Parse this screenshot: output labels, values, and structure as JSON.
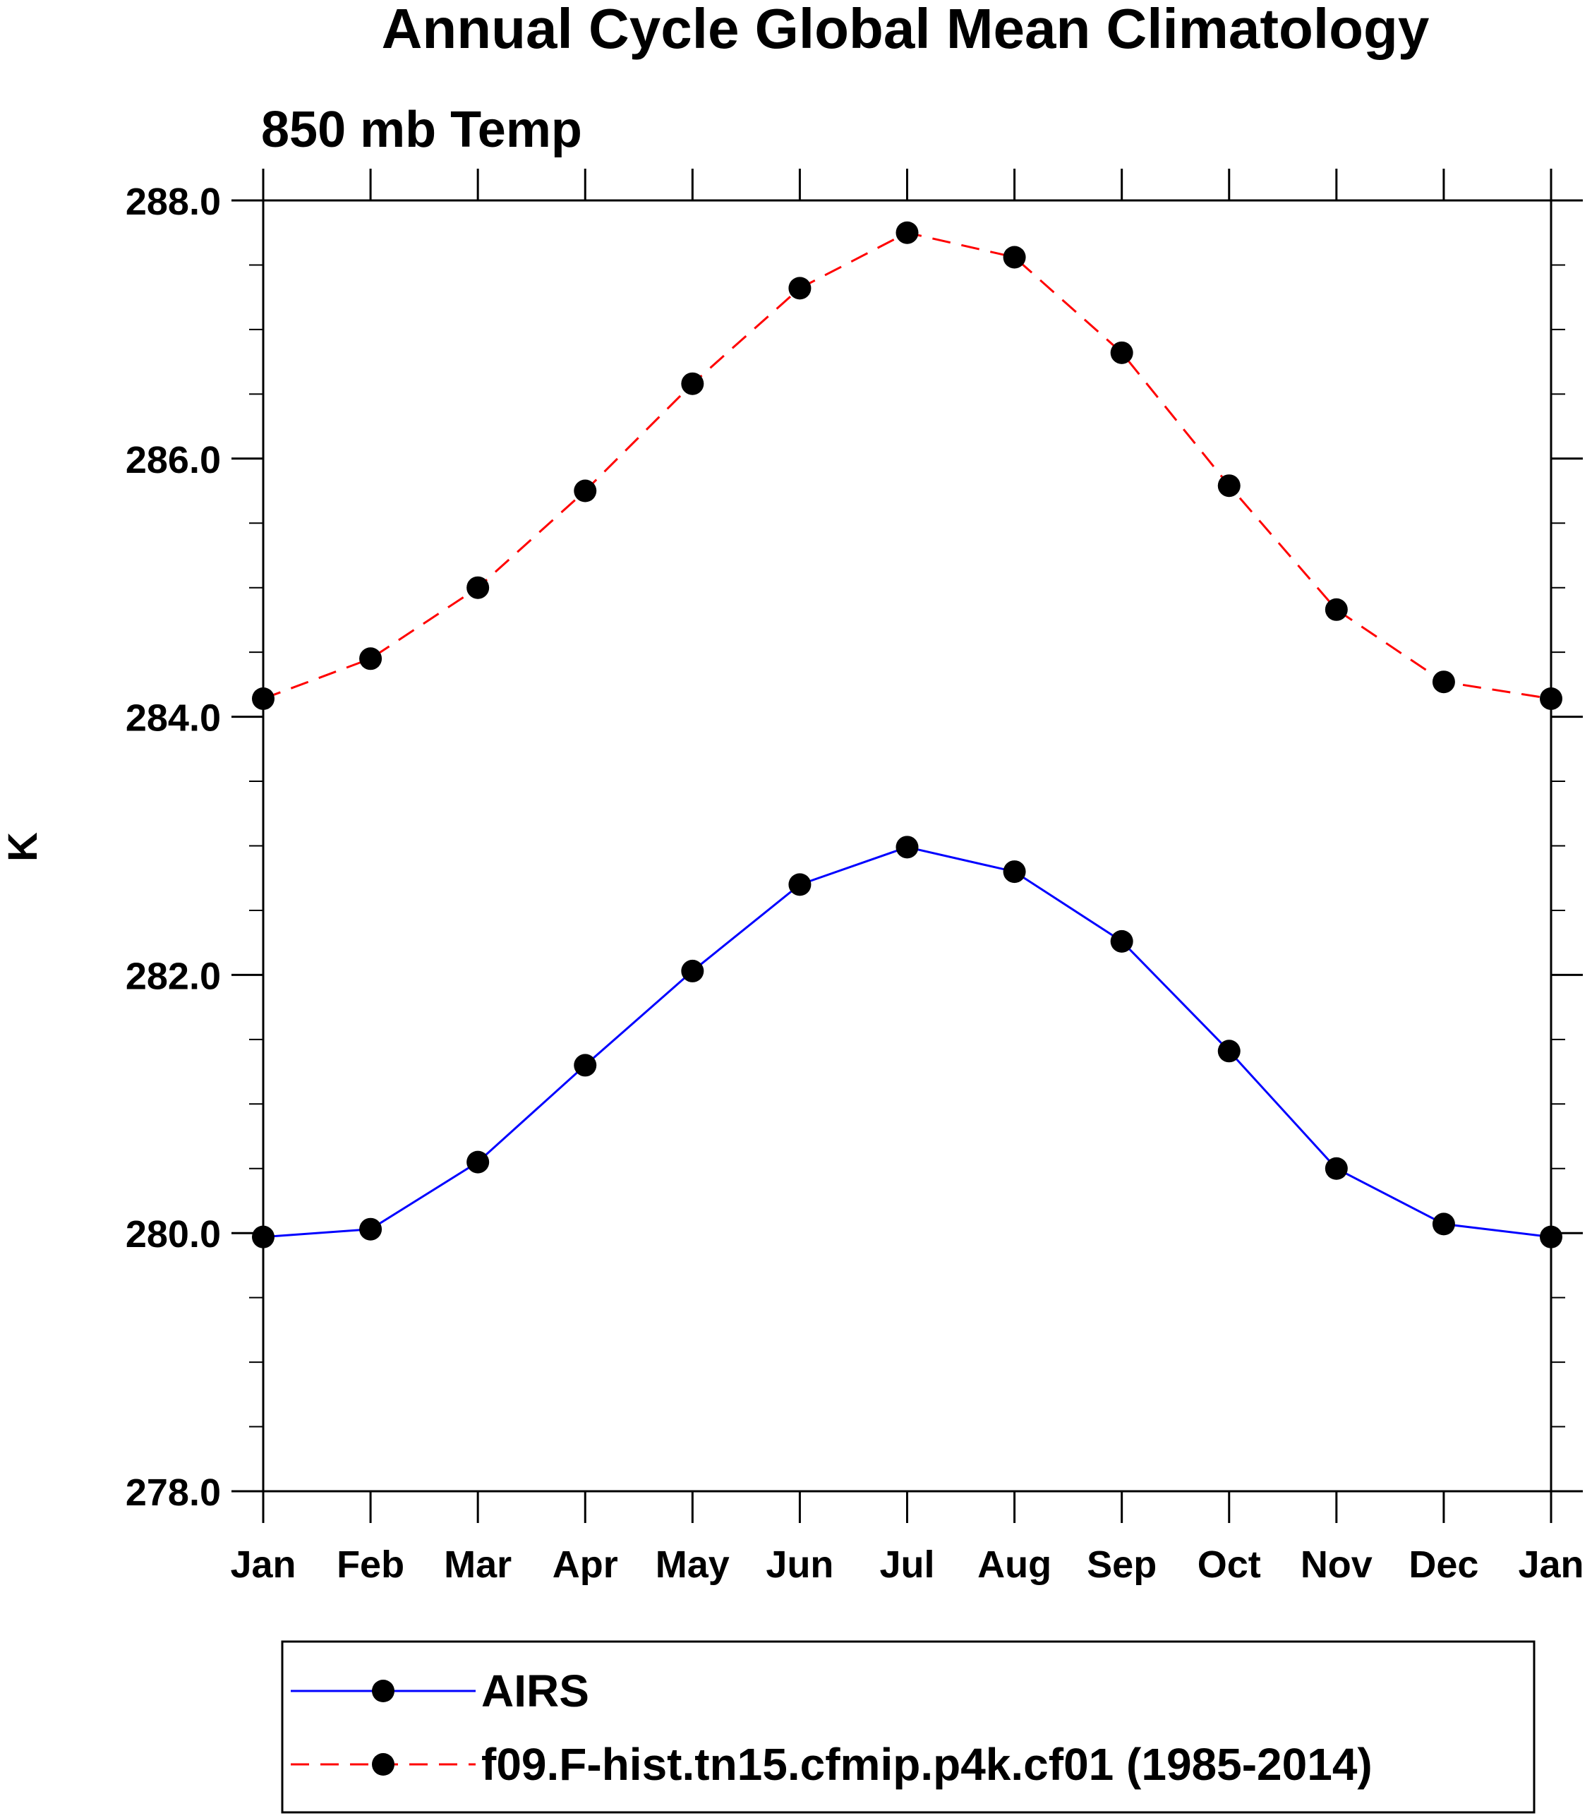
{
  "chart_data": {
    "type": "line",
    "title": "Annual Cycle Global Mean Climatology",
    "subtitle": "850 mb Temp",
    "xlabel": "",
    "ylabel": "K",
    "categories": [
      "Jan",
      "Feb",
      "Mar",
      "Apr",
      "May",
      "Jun",
      "Jul",
      "Aug",
      "Sep",
      "Oct",
      "Nov",
      "Dec",
      "Jan"
    ],
    "ylim": [
      278.0,
      288.0
    ],
    "yticks": [
      "278.0",
      "280.0",
      "282.0",
      "284.0",
      "286.0",
      "288.0"
    ],
    "y_minor_step": 0.5,
    "grid": false,
    "legend_position": "bottom",
    "series": [
      {
        "name": "AIRS",
        "color": "#0000ff",
        "line_style": "solid",
        "marker": "filled-circle",
        "values": [
          279.97,
          280.03,
          280.55,
          281.3,
          282.03,
          282.7,
          282.99,
          282.8,
          282.26,
          281.41,
          280.5,
          280.07,
          279.97
        ]
      },
      {
        "name": "f09.F-hist.tn15.cfmip.p4k.cf01 (1985-2014)",
        "color": "#ff0000",
        "line_style": "dashed",
        "marker": "filled-circle",
        "values": [
          284.14,
          284.45,
          285.0,
          285.75,
          286.58,
          287.32,
          287.75,
          287.56,
          286.82,
          285.79,
          284.83,
          284.27,
          284.14
        ]
      }
    ]
  }
}
